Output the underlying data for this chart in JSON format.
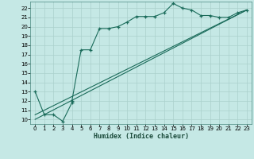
{
  "title": "",
  "xlabel": "Humidex (Indice chaleur)",
  "ylabel": "",
  "bg_color": "#c5e8e5",
  "grid_color": "#aad0cc",
  "line_color": "#1a6b5a",
  "xlim": [
    -0.5,
    23.5
  ],
  "ylim": [
    9.5,
    22.7
  ],
  "xticks": [
    0,
    1,
    2,
    3,
    4,
    5,
    6,
    7,
    8,
    9,
    10,
    11,
    12,
    13,
    14,
    15,
    16,
    17,
    18,
    19,
    20,
    21,
    22,
    23
  ],
  "yticks": [
    10,
    11,
    12,
    13,
    14,
    15,
    16,
    17,
    18,
    19,
    20,
    21,
    22
  ],
  "line1_x": [
    0,
    1,
    2,
    3,
    4,
    4,
    5,
    6,
    7,
    8,
    9,
    10,
    11,
    12,
    13,
    14,
    15,
    16,
    17,
    18,
    19,
    20,
    21,
    22,
    23
  ],
  "line1_y": [
    13,
    10.5,
    10.5,
    9.8,
    11.8,
    12.0,
    17.5,
    17.5,
    19.8,
    19.8,
    20.0,
    20.5,
    21.1,
    21.1,
    21.1,
    21.5,
    22.5,
    22.0,
    21.8,
    21.2,
    21.2,
    21.0,
    21.0,
    21.5,
    21.8
  ],
  "line2_x": [
    0,
    23
  ],
  "line2_y": [
    10,
    21.8
  ],
  "line3_x": [
    0,
    23
  ],
  "line3_y": [
    10.5,
    21.8
  ]
}
